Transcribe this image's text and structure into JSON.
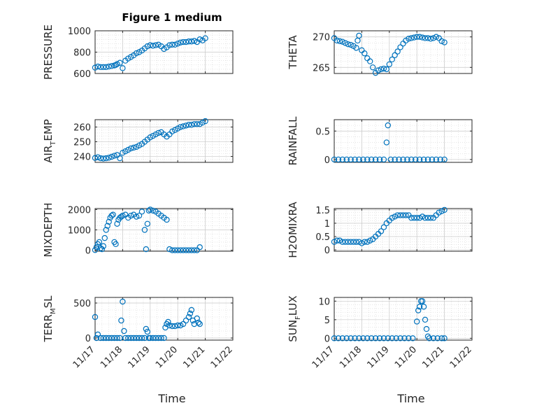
{
  "colors": {
    "marker": "#0072bd",
    "axis": "#262626",
    "grid": "#d6d6d6"
  },
  "chart_data": [
    {
      "type": "scatter",
      "title": "Figure 1 medium",
      "ylabel": "PRESSURE",
      "ylabel_parts": [
        [
          "PRESSURE",
          ""
        ]
      ],
      "ylim": [
        600,
        1000
      ],
      "yticks": [
        600,
        800,
        1000
      ],
      "xlim": [
        0,
        5
      ],
      "xticks": [
        0,
        1,
        2,
        3,
        4,
        5
      ],
      "grid": true,
      "x": [
        0.0,
        0.1,
        0.2,
        0.3,
        0.4,
        0.5,
        0.6,
        0.7,
        0.75,
        0.8,
        0.9,
        1.0,
        1.1,
        1.2,
        1.3,
        1.4,
        1.5,
        1.6,
        1.7,
        1.8,
        1.9,
        2.0,
        2.1,
        2.2,
        2.3,
        2.4,
        2.5,
        2.6,
        2.7,
        2.8,
        2.9,
        3.0,
        3.1,
        3.2,
        3.3,
        3.4,
        3.5,
        3.6,
        3.7,
        3.8,
        3.9,
        4.0
      ],
      "values": [
        655,
        665,
        660,
        660,
        660,
        665,
        670,
        675,
        680,
        688,
        700,
        650,
        720,
        740,
        755,
        770,
        790,
        800,
        815,
        835,
        855,
        865,
        860,
        865,
        870,
        855,
        830,
        845,
        865,
        870,
        870,
        880,
        890,
        895,
        895,
        900,
        900,
        905,
        895,
        920,
        910,
        930
      ]
    },
    {
      "type": "scatter",
      "title": "",
      "ylabel": "THETA",
      "ylabel_parts": [
        [
          "THETA",
          ""
        ]
      ],
      "ylim": [
        264,
        271
      ],
      "yticks": [
        265,
        270
      ],
      "xlim": [
        0,
        5
      ],
      "xticks": [
        0,
        1,
        2,
        3,
        4,
        5
      ],
      "grid": true,
      "x": [
        0.0,
        0.1,
        0.2,
        0.3,
        0.4,
        0.5,
        0.6,
        0.7,
        0.8,
        0.85,
        0.9,
        1.0,
        1.1,
        1.2,
        1.3,
        1.4,
        1.5,
        1.6,
        1.7,
        1.8,
        1.9,
        2.0,
        2.1,
        2.2,
        2.3,
        2.4,
        2.5,
        2.6,
        2.7,
        2.8,
        2.9,
        3.0,
        3.1,
        3.2,
        3.3,
        3.4,
        3.5,
        3.6,
        3.7,
        3.8,
        3.9,
        4.0
      ],
      "values": [
        269.8,
        269.4,
        269.3,
        269.2,
        269.0,
        268.8,
        268.7,
        268.5,
        268.2,
        269.4,
        270.2,
        267.8,
        267.3,
        266.5,
        266.0,
        265.0,
        264.1,
        264.5,
        264.7,
        264.8,
        264.7,
        265.5,
        266.3,
        267.0,
        267.6,
        268.3,
        268.9,
        269.4,
        269.7,
        269.8,
        269.9,
        270.0,
        270.0,
        269.9,
        269.8,
        269.8,
        269.7,
        269.8,
        270.0,
        269.8,
        269.3,
        269.1
      ]
    },
    {
      "type": "scatter",
      "title": "",
      "ylabel": "AIR_TEMP",
      "ylabel_parts": [
        [
          "AIR",
          ""
        ],
        [
          "T",
          "sub"
        ],
        [
          "EMP",
          ""
        ]
      ],
      "ylim": [
        236,
        265
      ],
      "yticks": [
        240,
        250,
        260
      ],
      "xlim": [
        0,
        5
      ],
      "xticks": [
        0,
        1,
        2,
        3,
        4,
        5
      ],
      "grid": true,
      "x": [
        0.0,
        0.1,
        0.2,
        0.3,
        0.4,
        0.5,
        0.6,
        0.7,
        0.8,
        0.9,
        1.0,
        1.1,
        1.2,
        1.3,
        1.4,
        1.5,
        1.6,
        1.7,
        1.8,
        1.9,
        2.0,
        2.1,
        2.2,
        2.3,
        2.4,
        2.5,
        2.6,
        2.7,
        2.8,
        2.9,
        3.0,
        3.1,
        3.2,
        3.3,
        3.4,
        3.5,
        3.6,
        3.7,
        3.8,
        3.9,
        4.0
      ],
      "values": [
        239,
        239.5,
        238.8,
        238.6,
        238.8,
        239.2,
        239.8,
        240.5,
        241.0,
        238.8,
        242.5,
        243.5,
        244.5,
        245.5,
        246.0,
        246.5,
        247.5,
        248.5,
        250.0,
        251.5,
        253.0,
        254.0,
        255.0,
        256.0,
        256.5,
        255.0,
        253.5,
        255.0,
        257.0,
        258.0,
        259.0,
        260.0,
        260.5,
        261.0,
        261.5,
        261.5,
        262.0,
        262.0,
        262.0,
        263.0,
        264.0
      ]
    },
    {
      "type": "scatter",
      "title": "",
      "ylabel": "RAINFALL",
      "ylabel_parts": [
        [
          "RAINFALL",
          ""
        ]
      ],
      "ylim": [
        -0.05,
        0.7
      ],
      "yticks": [
        0,
        0.5
      ],
      "xlim": [
        0,
        5
      ],
      "xticks": [
        0,
        1,
        2,
        3,
        4,
        5
      ],
      "grid": true,
      "x": [
        0.0,
        0.15,
        0.3,
        0.45,
        0.6,
        0.75,
        0.9,
        1.05,
        1.2,
        1.35,
        1.5,
        1.65,
        1.8,
        1.9,
        1.95,
        2.05,
        2.2,
        2.35,
        2.5,
        2.65,
        2.8,
        2.95,
        3.1,
        3.25,
        3.4,
        3.55,
        3.7,
        3.85,
        4.0
      ],
      "values": [
        0,
        0,
        0,
        0,
        0,
        0,
        0,
        0,
        0,
        0,
        0,
        0,
        0,
        0.3,
        0.6,
        0,
        0,
        0,
        0,
        0,
        0,
        0,
        0,
        0,
        0,
        0,
        0,
        0,
        0
      ]
    },
    {
      "type": "scatter",
      "title": "",
      "ylabel": "MIXDEPTH",
      "ylabel_parts": [
        [
          "MIXDEPTH",
          ""
        ]
      ],
      "ylim": [
        -50,
        2050
      ],
      "yticks": [
        0,
        1000,
        2000
      ],
      "xlim": [
        0,
        5
      ],
      "xticks": [
        0,
        1,
        2,
        3,
        4,
        5
      ],
      "grid": true,
      "x": [
        0.0,
        0.05,
        0.1,
        0.15,
        0.2,
        0.25,
        0.3,
        0.35,
        0.4,
        0.45,
        0.5,
        0.55,
        0.6,
        0.65,
        0.7,
        0.75,
        0.8,
        0.85,
        0.9,
        0.95,
        1.0,
        1.1,
        1.2,
        1.3,
        1.4,
        1.5,
        1.6,
        1.7,
        1.8,
        1.85,
        1.9,
        1.95,
        2.0,
        2.1,
        2.2,
        2.3,
        2.4,
        2.5,
        2.6,
        2.7,
        2.8,
        2.9,
        3.0,
        3.1,
        3.2,
        3.3,
        3.4,
        3.5,
        3.6,
        3.7,
        3.8
      ],
      "values": [
        10,
        150,
        300,
        400,
        100,
        50,
        200,
        600,
        1000,
        1200,
        1400,
        1600,
        1700,
        1750,
        400,
        300,
        1300,
        1500,
        1600,
        1650,
        1700,
        1750,
        1600,
        1700,
        1750,
        1650,
        1700,
        1900,
        1000,
        50,
        1300,
        1950,
        2000,
        1950,
        1900,
        1800,
        1700,
        1600,
        1500,
        50,
        0,
        0,
        0,
        0,
        0,
        0,
        0,
        0,
        0,
        0,
        150
      ]
    },
    {
      "type": "scatter",
      "title": "",
      "ylabel": "H2OMIXRA",
      "ylabel_parts": [
        [
          "H2OMIXRA",
          ""
        ]
      ],
      "ylim": [
        -0.05,
        1.55
      ],
      "yticks": [
        0,
        0.5,
        1,
        1.5
      ],
      "xlim": [
        0,
        5
      ],
      "xticks": [
        0,
        1,
        2,
        3,
        4,
        5
      ],
      "grid": true,
      "x": [
        0.0,
        0.1,
        0.2,
        0.3,
        0.4,
        0.5,
        0.6,
        0.7,
        0.8,
        0.9,
        1.0,
        1.1,
        1.2,
        1.3,
        1.4,
        1.5,
        1.6,
        1.7,
        1.8,
        1.9,
        2.0,
        2.1,
        2.2,
        2.3,
        2.4,
        2.5,
        2.6,
        2.7,
        2.8,
        2.9,
        3.0,
        3.1,
        3.2,
        3.3,
        3.4,
        3.5,
        3.6,
        3.7,
        3.8,
        3.9,
        4.0
      ],
      "values": [
        0.3,
        0.35,
        0.35,
        0.3,
        0.3,
        0.3,
        0.3,
        0.3,
        0.3,
        0.3,
        0.25,
        0.3,
        0.3,
        0.35,
        0.4,
        0.5,
        0.6,
        0.7,
        0.85,
        1.0,
        1.1,
        1.2,
        1.25,
        1.3,
        1.3,
        1.3,
        1.3,
        1.3,
        1.2,
        1.2,
        1.2,
        1.2,
        1.25,
        1.2,
        1.2,
        1.2,
        1.2,
        1.3,
        1.4,
        1.45,
        1.5
      ]
    },
    {
      "type": "scatter",
      "title": "",
      "ylabel": "TERR_MSL",
      "ylabel_parts": [
        [
          "TERR",
          ""
        ],
        [
          "M",
          "sub"
        ],
        [
          "SL",
          ""
        ]
      ],
      "ylim": [
        -30,
        580
      ],
      "yticks": [
        0,
        500
      ],
      "xlim": [
        0,
        5
      ],
      "xticks": [
        0,
        1,
        2,
        3,
        4,
        5
      ],
      "grid": true,
      "x": [
        0.0,
        0.05,
        0.1,
        0.2,
        0.3,
        0.4,
        0.5,
        0.6,
        0.7,
        0.8,
        0.9,
        0.95,
        1.0,
        1.05,
        1.1,
        1.2,
        1.3,
        1.4,
        1.5,
        1.6,
        1.7,
        1.8,
        1.85,
        1.9,
        1.95,
        2.0,
        2.1,
        2.2,
        2.3,
        2.4,
        2.5,
        2.55,
        2.6,
        2.65,
        2.7,
        2.8,
        2.9,
        3.0,
        3.1,
        3.2,
        3.3,
        3.4,
        3.45,
        3.5,
        3.55,
        3.6,
        3.7,
        3.75,
        3.8
      ],
      "values": [
        300,
        0,
        50,
        0,
        0,
        0,
        0,
        0,
        0,
        0,
        0,
        250,
        520,
        100,
        0,
        0,
        0,
        0,
        0,
        0,
        0,
        0,
        130,
        90,
        0,
        0,
        0,
        0,
        0,
        0,
        0,
        150,
        200,
        230,
        180,
        170,
        170,
        180,
        180,
        200,
        250,
        300,
        350,
        400,
        250,
        200,
        280,
        220,
        200
      ]
    },
    {
      "type": "scatter",
      "title": "",
      "ylabel": "SUN_FLUX",
      "ylabel_parts": [
        [
          "SUN",
          ""
        ],
        [
          "F",
          "sub"
        ],
        [
          "LUX",
          ""
        ]
      ],
      "ylim": [
        -0.5,
        11
      ],
      "yticks": [
        0,
        5,
        10
      ],
      "xlim": [
        0,
        5
      ],
      "xticks": [
        0,
        1,
        2,
        3,
        4,
        5
      ],
      "grid": true,
      "x": [
        0.0,
        0.15,
        0.3,
        0.45,
        0.6,
        0.75,
        0.9,
        1.05,
        1.2,
        1.35,
        1.5,
        1.65,
        1.8,
        1.95,
        2.1,
        2.25,
        2.4,
        2.55,
        2.7,
        2.85,
        3.0,
        3.05,
        3.1,
        3.15,
        3.2,
        3.25,
        3.3,
        3.35,
        3.4,
        3.45,
        3.6,
        3.75,
        3.9,
        4.0
      ],
      "values": [
        0,
        0,
        0,
        0,
        0,
        0,
        0,
        0,
        0,
        0,
        0,
        0,
        0,
        0,
        0,
        0,
        0,
        0,
        0,
        0,
        4.5,
        7.5,
        8.5,
        10,
        10,
        8.5,
        5,
        2.5,
        0.5,
        0,
        0,
        0,
        0,
        0
      ]
    }
  ],
  "shared": {
    "xtick_labels": [
      "11/17",
      "11/18",
      "11/19",
      "11/20",
      "11/21",
      "11/22"
    ],
    "xlabel": "Time"
  }
}
